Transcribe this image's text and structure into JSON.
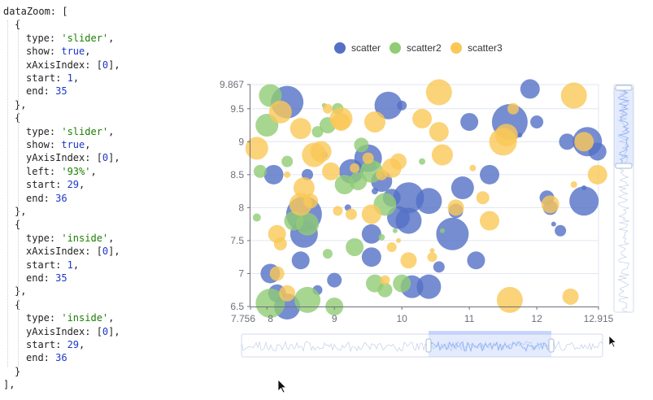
{
  "editor": {
    "code_lines": [
      {
        "indent": 0,
        "tokens": [
          {
            "t": "text",
            "v": "dataZoom: ["
          }
        ]
      },
      {
        "indent": 1,
        "tokens": [
          {
            "t": "text",
            "v": "{"
          }
        ]
      },
      {
        "indent": 2,
        "tokens": [
          {
            "t": "text",
            "v": "type: "
          },
          {
            "t": "str",
            "v": "'slider'"
          },
          {
            "t": "text",
            "v": ","
          }
        ]
      },
      {
        "indent": 2,
        "tokens": [
          {
            "t": "text",
            "v": "show: "
          },
          {
            "t": "bool",
            "v": "true"
          },
          {
            "t": "text",
            "v": ","
          }
        ]
      },
      {
        "indent": 2,
        "tokens": [
          {
            "t": "text",
            "v": "xAxisIndex: ["
          },
          {
            "t": "num",
            "v": "0"
          },
          {
            "t": "text",
            "v": "],"
          }
        ]
      },
      {
        "indent": 2,
        "tokens": [
          {
            "t": "text",
            "v": "start: "
          },
          {
            "t": "num",
            "v": "1"
          },
          {
            "t": "text",
            "v": ","
          }
        ]
      },
      {
        "indent": 2,
        "tokens": [
          {
            "t": "text",
            "v": "end: "
          },
          {
            "t": "num",
            "v": "35"
          }
        ]
      },
      {
        "indent": 1,
        "tokens": [
          {
            "t": "text",
            "v": "},"
          }
        ]
      },
      {
        "indent": 1,
        "tokens": [
          {
            "t": "text",
            "v": "{"
          }
        ]
      },
      {
        "indent": 2,
        "tokens": [
          {
            "t": "text",
            "v": "type: "
          },
          {
            "t": "str",
            "v": "'slider'"
          },
          {
            "t": "text",
            "v": ","
          }
        ]
      },
      {
        "indent": 2,
        "tokens": [
          {
            "t": "text",
            "v": "show: "
          },
          {
            "t": "bool",
            "v": "true"
          },
          {
            "t": "text",
            "v": ","
          }
        ]
      },
      {
        "indent": 2,
        "tokens": [
          {
            "t": "text",
            "v": "yAxisIndex: ["
          },
          {
            "t": "num",
            "v": "0"
          },
          {
            "t": "text",
            "v": "],"
          }
        ]
      },
      {
        "indent": 2,
        "tokens": [
          {
            "t": "text",
            "v": "left: "
          },
          {
            "t": "str",
            "v": "'93%'"
          },
          {
            "t": "text",
            "v": ","
          }
        ]
      },
      {
        "indent": 2,
        "tokens": [
          {
            "t": "text",
            "v": "start: "
          },
          {
            "t": "num",
            "v": "29"
          },
          {
            "t": "text",
            "v": ","
          }
        ]
      },
      {
        "indent": 2,
        "tokens": [
          {
            "t": "text",
            "v": "end: "
          },
          {
            "t": "num",
            "v": "36"
          }
        ]
      },
      {
        "indent": 1,
        "tokens": [
          {
            "t": "text",
            "v": "},"
          }
        ]
      },
      {
        "indent": 1,
        "tokens": [
          {
            "t": "text",
            "v": "{"
          }
        ]
      },
      {
        "indent": 2,
        "tokens": [
          {
            "t": "text",
            "v": "type: "
          },
          {
            "t": "str",
            "v": "'inside'"
          },
          {
            "t": "text",
            "v": ","
          }
        ]
      },
      {
        "indent": 2,
        "tokens": [
          {
            "t": "text",
            "v": "xAxisIndex: ["
          },
          {
            "t": "num",
            "v": "0"
          },
          {
            "t": "text",
            "v": "],"
          }
        ]
      },
      {
        "indent": 2,
        "tokens": [
          {
            "t": "text",
            "v": "start: "
          },
          {
            "t": "num",
            "v": "1"
          },
          {
            "t": "text",
            "v": ","
          }
        ]
      },
      {
        "indent": 2,
        "tokens": [
          {
            "t": "text",
            "v": "end: "
          },
          {
            "t": "num",
            "v": "35"
          }
        ]
      },
      {
        "indent": 1,
        "tokens": [
          {
            "t": "text",
            "v": "},"
          }
        ]
      },
      {
        "indent": 1,
        "tokens": [
          {
            "t": "text",
            "v": "{"
          }
        ]
      },
      {
        "indent": 2,
        "tokens": [
          {
            "t": "text",
            "v": "type: "
          },
          {
            "t": "str",
            "v": "'inside'"
          },
          {
            "t": "text",
            "v": ","
          }
        ]
      },
      {
        "indent": 2,
        "tokens": [
          {
            "t": "text",
            "v": "yAxisIndex: ["
          },
          {
            "t": "num",
            "v": "0"
          },
          {
            "t": "text",
            "v": "],"
          }
        ]
      },
      {
        "indent": 2,
        "tokens": [
          {
            "t": "text",
            "v": "start: "
          },
          {
            "t": "num",
            "v": "29"
          },
          {
            "t": "text",
            "v": ","
          }
        ]
      },
      {
        "indent": 2,
        "tokens": [
          {
            "t": "text",
            "v": "end: "
          },
          {
            "t": "num",
            "v": "36"
          }
        ]
      },
      {
        "indent": 1,
        "tokens": [
          {
            "t": "text",
            "v": "}"
          }
        ]
      },
      {
        "indent": 0,
        "tokens": [
          {
            "t": "text",
            "v": "],"
          }
        ]
      }
    ]
  },
  "colors": {
    "scatter": "#5470c6",
    "scatter2": "#91cc75",
    "scatter3": "#fac858",
    "axis": "#6e7079",
    "grid": "#e0e6f1",
    "slider_fill": "#8fb0f7",
    "slider_border": "#d2dbee",
    "code_str": "#1a7f00",
    "code_num": "#1c37c8"
  },
  "chart_data": {
    "type": "scatter",
    "legend": [
      "scatter",
      "scatter2",
      "scatter3"
    ],
    "legend_position": "top-center",
    "xlim": [
      7.756,
      12.915
    ],
    "ylim": [
      6.5,
      9.867
    ],
    "x_ticks": [
      "7.756",
      "8",
      "9",
      "10",
      "11",
      "12",
      "12.915"
    ],
    "y_ticks": [
      "6.5",
      "7",
      "7.5",
      "8",
      "8.5",
      "9",
      "9.5",
      "9.867"
    ],
    "y_grid": [
      7,
      7.5,
      8,
      8.5,
      9,
      9.5
    ],
    "datazoom": {
      "x_slider": {
        "start": 1,
        "end": 35
      },
      "y_slider": {
        "start": 29,
        "end": 36
      }
    },
    "series": [
      {
        "name": "scatter",
        "points": [
          [
            8.3,
            9.6,
            20
          ],
          [
            8.1,
            8.5,
            12
          ],
          [
            8.05,
            7.0,
            12
          ],
          [
            8.15,
            6.7,
            11
          ],
          [
            8.3,
            6.5,
            16
          ],
          [
            8.5,
            7.2,
            11
          ],
          [
            8.55,
            7.9,
            22
          ],
          [
            8.55,
            7.6,
            17
          ],
          [
            8.6,
            8.5,
            7
          ],
          [
            8.85,
            8.8,
            4
          ],
          [
            8.75,
            6.75,
            6
          ],
          [
            9.0,
            6.9,
            9
          ],
          [
            9.2,
            8.0,
            4
          ],
          [
            9.25,
            8.55,
            15
          ],
          [
            9.5,
            8.75,
            17
          ],
          [
            9.55,
            7.6,
            12
          ],
          [
            9.55,
            7.25,
            12
          ],
          [
            9.7,
            8.4,
            13
          ],
          [
            9.8,
            9.55,
            17
          ],
          [
            9.85,
            8.15,
            11
          ],
          [
            9.95,
            7.85,
            14
          ],
          [
            10.0,
            9.55,
            6
          ],
          [
            10.1,
            7.8,
            16
          ],
          [
            10.1,
            8.15,
            19
          ],
          [
            10.15,
            6.8,
            14
          ],
          [
            10.4,
            8.1,
            16
          ],
          [
            10.4,
            6.8,
            15
          ],
          [
            10.55,
            7.1,
            7
          ],
          [
            10.75,
            7.6,
            20
          ],
          [
            10.8,
            7.95,
            9
          ],
          [
            10.9,
            8.3,
            14
          ],
          [
            11.0,
            9.3,
            11
          ],
          [
            11.1,
            7.2,
            11
          ],
          [
            11.3,
            8.5,
            12
          ],
          [
            11.6,
            9.3,
            22
          ],
          [
            11.9,
            9.8,
            12
          ],
          [
            12.0,
            9.3,
            8
          ],
          [
            12.15,
            8.15,
            9
          ],
          [
            12.2,
            8.0,
            9
          ],
          [
            12.45,
            9.0,
            10
          ],
          [
            12.7,
            8.1,
            18
          ],
          [
            12.75,
            9.0,
            18
          ],
          [
            12.9,
            8.85,
            11
          ],
          [
            12.35,
            7.65,
            7
          ],
          [
            9.6,
            8.25,
            4
          ],
          [
            12.25,
            7.75,
            3
          ],
          [
            11.75,
            9.1,
            3
          ],
          [
            12.7,
            8.3,
            3
          ]
        ]
      },
      {
        "name": "scatter2",
        "points": [
          [
            8.05,
            9.7,
            14
          ],
          [
            8.0,
            9.25,
            14
          ],
          [
            7.9,
            8.55,
            8
          ],
          [
            7.85,
            7.85,
            5
          ],
          [
            8.05,
            6.55,
            18
          ],
          [
            8.3,
            8.7,
            7
          ],
          [
            8.4,
            7.8,
            12
          ],
          [
            8.6,
            7.75,
            14
          ],
          [
            8.6,
            6.6,
            16
          ],
          [
            8.75,
            9.15,
            7
          ],
          [
            8.9,
            9.25,
            10
          ],
          [
            8.9,
            7.3,
            6
          ],
          [
            9.0,
            6.5,
            11
          ],
          [
            9.05,
            9.5,
            7
          ],
          [
            9.15,
            8.35,
            12
          ],
          [
            9.3,
            7.4,
            11
          ],
          [
            9.35,
            8.4,
            11
          ],
          [
            9.4,
            8.95,
            9
          ],
          [
            9.55,
            8.55,
            14
          ],
          [
            9.6,
            6.85,
            11
          ],
          [
            9.75,
            8.05,
            14
          ],
          [
            9.75,
            6.75,
            9
          ],
          [
            10.0,
            6.85,
            11
          ],
          [
            9.7,
            7.55,
            4
          ],
          [
            8.85,
            9.55,
            3
          ],
          [
            9.65,
            8.65,
            3
          ],
          [
            9.9,
            7.65,
            3
          ],
          [
            10.3,
            8.7,
            4
          ],
          [
            10.6,
            7.65,
            3
          ]
        ]
      },
      {
        "name": "scatter3",
        "points": [
          [
            7.85,
            8.9,
            14
          ],
          [
            8.2,
            9.45,
            14
          ],
          [
            8.15,
            7.6,
            11
          ],
          [
            8.2,
            7.45,
            8
          ],
          [
            8.15,
            7.0,
            9
          ],
          [
            8.3,
            6.7,
            10
          ],
          [
            8.3,
            8.5,
            4
          ],
          [
            8.5,
            9.2,
            13
          ],
          [
            8.5,
            8.05,
            14
          ],
          [
            8.55,
            8.3,
            13
          ],
          [
            8.65,
            8.1,
            9
          ],
          [
            8.7,
            8.8,
            15
          ],
          [
            8.8,
            8.85,
            13
          ],
          [
            8.9,
            9.5,
            6
          ],
          [
            8.95,
            8.55,
            11
          ],
          [
            9.05,
            7.95,
            6
          ],
          [
            9.1,
            9.35,
            14
          ],
          [
            9.1,
            9.3,
            11
          ],
          [
            9.25,
            7.9,
            7
          ],
          [
            9.3,
            8.6,
            6
          ],
          [
            9.5,
            8.75,
            7
          ],
          [
            9.55,
            7.9,
            12
          ],
          [
            9.6,
            9.3,
            13
          ],
          [
            9.7,
            8.5,
            7
          ],
          [
            9.75,
            6.9,
            6
          ],
          [
            9.85,
            7.4,
            6
          ],
          [
            9.85,
            8.6,
            12
          ],
          [
            9.95,
            8.7,
            10
          ],
          [
            10.1,
            7.2,
            10
          ],
          [
            10.3,
            9.35,
            12
          ],
          [
            10.45,
            7.25,
            6
          ],
          [
            10.55,
            9.15,
            12
          ],
          [
            10.6,
            8.8,
            13
          ],
          [
            10.55,
            9.75,
            16
          ],
          [
            10.8,
            8.0,
            10
          ],
          [
            11.05,
            8.6,
            4
          ],
          [
            11.2,
            8.15,
            8
          ],
          [
            11.3,
            7.8,
            12
          ],
          [
            11.5,
            9.0,
            17
          ],
          [
            11.6,
            6.6,
            16
          ],
          [
            11.55,
            9.1,
            14
          ],
          [
            11.65,
            9.5,
            7
          ],
          [
            12.2,
            8.05,
            11
          ],
          [
            12.55,
            9.7,
            16
          ],
          [
            12.9,
            8.5,
            12
          ],
          [
            12.5,
            6.65,
            10
          ],
          [
            12.55,
            8.35,
            4
          ],
          [
            12.7,
            9.0,
            12
          ],
          [
            9.95,
            7.5,
            3
          ],
          [
            10.45,
            7.35,
            3
          ]
        ]
      }
    ]
  }
}
